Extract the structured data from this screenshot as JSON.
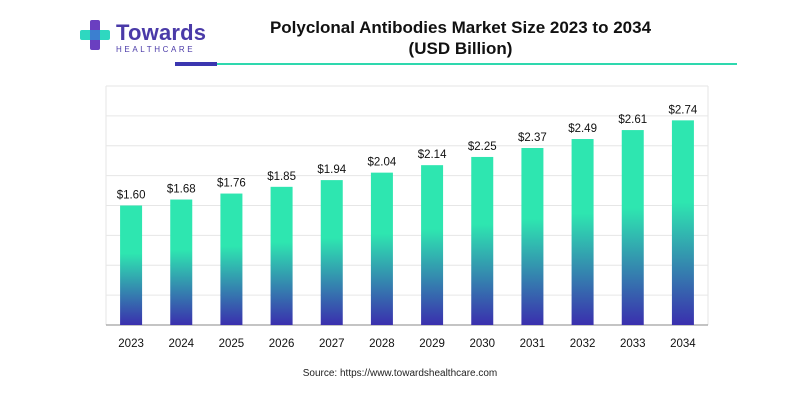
{
  "logo": {
    "name": "Towards",
    "sub": "HEALTHCARE",
    "icon": "medical-cross-icon"
  },
  "chart_data": {
    "type": "bar",
    "title": "Polyclonal Antibodies Market Size 2023 to 2034",
    "subtitle": "(USD Billion)",
    "xlabel": "",
    "ylabel": "",
    "categories": [
      "2023",
      "2024",
      "2025",
      "2026",
      "2027",
      "2028",
      "2029",
      "2030",
      "2031",
      "2032",
      "2033",
      "2034"
    ],
    "values": [
      1.6,
      1.68,
      1.76,
      1.85,
      1.94,
      2.04,
      2.14,
      2.25,
      2.37,
      2.49,
      2.61,
      2.74
    ],
    "value_labels": [
      "$1.60",
      "$1.68",
      "$1.76",
      "$1.85",
      "$1.94",
      "$2.04",
      "$2.14",
      "$2.25",
      "$2.37",
      "$2.49",
      "$2.61",
      "$2.74"
    ],
    "ylim": [
      0,
      3.2
    ],
    "grid": true,
    "colors": {
      "bar_top": "#2ee6b0",
      "bar_bottom": "#3a2fae",
      "grid": "#e6e6e6",
      "axis": "#888888"
    }
  },
  "source": "Source: https://www.towardshealthcare.com"
}
